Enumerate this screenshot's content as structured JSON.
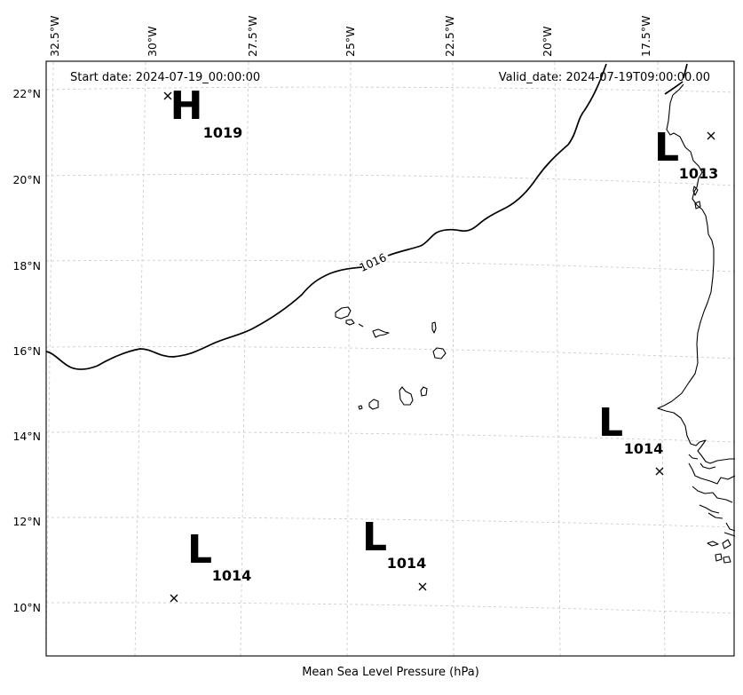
{
  "map": {
    "start_date": "Start date: 2024-07-19_00:00:00",
    "valid_date": "Valid_date: 2024-07-19T09:00:00.00",
    "xlabel": "Mean Sea Level Pressure (hPa)",
    "lon_ticks": [
      "32.5°W",
      "30°W",
      "27.5°W",
      "25°W",
      "22.5°W",
      "20°W",
      "17.5°W"
    ],
    "lat_ticks": [
      "22°N",
      "20°N",
      "18°N",
      "16°N",
      "14°N",
      "12°N",
      "10°N"
    ],
    "isobar_label": "1016",
    "pressure_centers": [
      {
        "type": "H",
        "value": "1019"
      },
      {
        "type": "L",
        "value": "1013"
      },
      {
        "type": "L",
        "value": "1014"
      },
      {
        "type": "L",
        "value": "1014"
      },
      {
        "type": "L",
        "value": "1014"
      }
    ],
    "colors": {
      "coastline": "#000000",
      "isobar": "#000000",
      "gridline": "#c8c8c8",
      "background": "#ffffff"
    }
  }
}
